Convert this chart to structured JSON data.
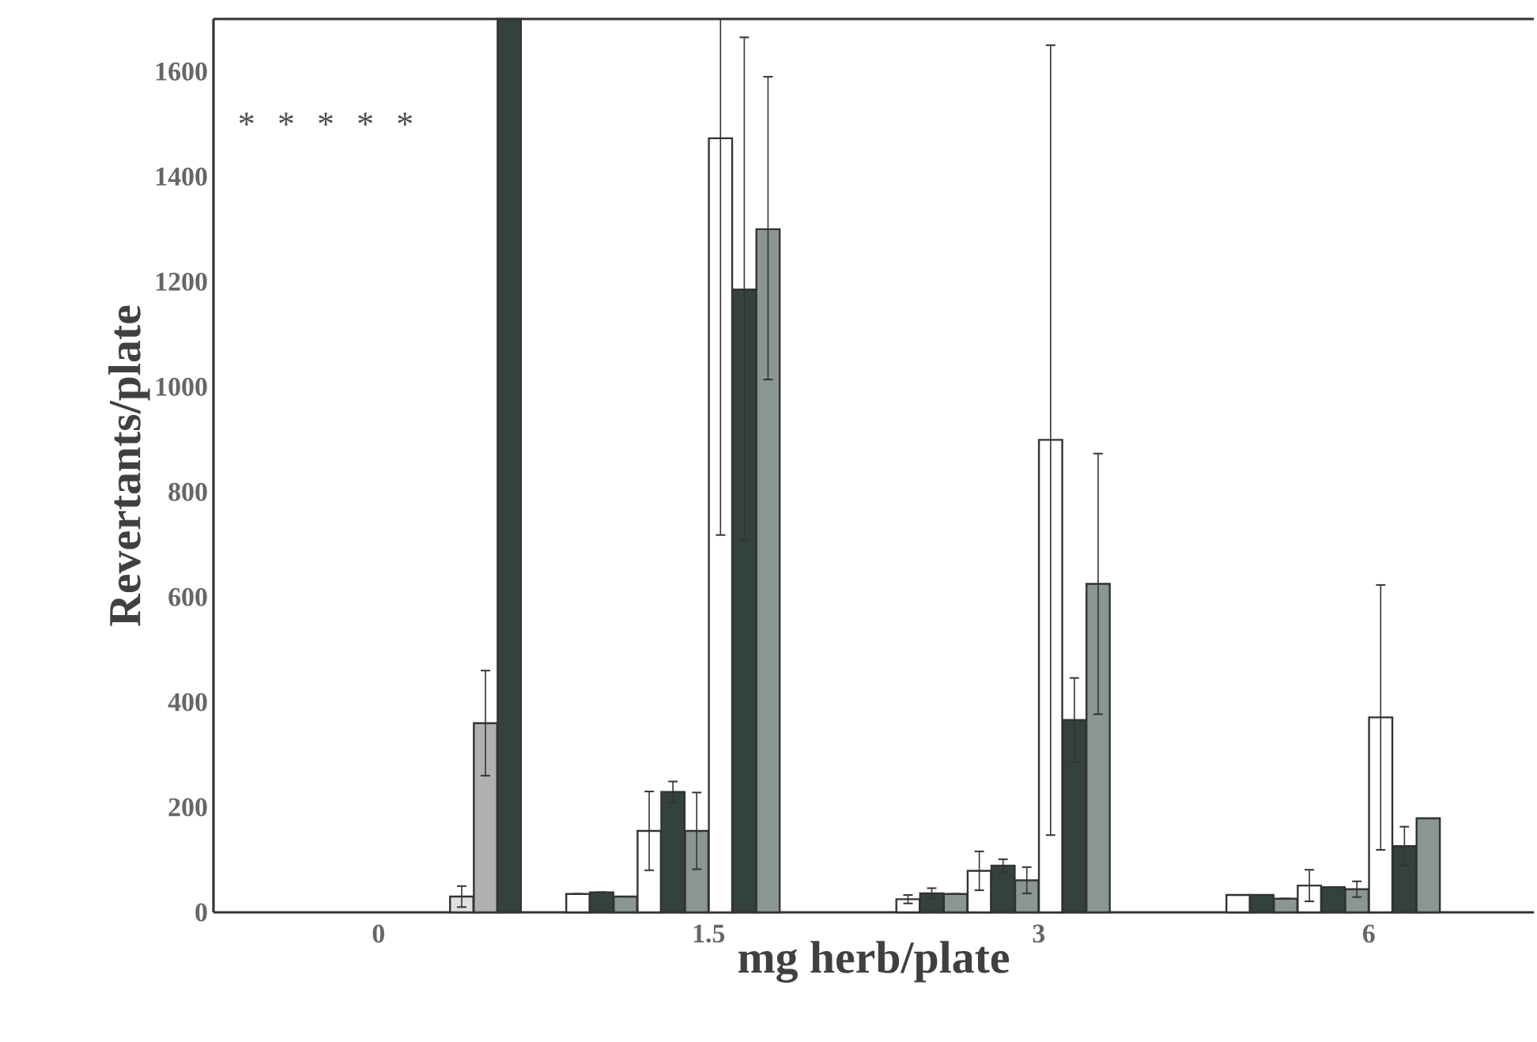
{
  "chart_data": {
    "type": "bar",
    "xlabel": "mg herb/plate",
    "ylabel": "Revertants/plate",
    "categories": [
      "0",
      "1.5",
      "3",
      "6"
    ],
    "ylim": [
      0,
      1700
    ],
    "yticks": [
      0,
      200,
      400,
      600,
      800,
      1000,
      1200,
      1400,
      1600
    ],
    "grid": false,
    "series": [
      {
        "color": "#ffffff",
        "values": [
          null,
          35,
          25,
          33
        ],
        "errors": [
          null,
          null,
          8,
          null
        ]
      },
      {
        "color": "#34423f",
        "values": [
          null,
          38,
          36,
          33
        ],
        "errors": [
          null,
          null,
          10,
          null
        ]
      },
      {
        "color": "#8a9694",
        "values": [
          null,
          30,
          35,
          26
        ],
        "errors": [
          null,
          null,
          null,
          null
        ]
      },
      {
        "color": "#ffffff",
        "values": [
          null,
          155,
          79,
          51
        ],
        "errors": [
          null,
          75,
          37,
          30
        ]
      },
      {
        "color": "#34423f",
        "values": [
          null,
          229,
          89,
          48
        ],
        "errors": [
          null,
          20,
          12,
          null
        ]
      },
      {
        "color": "#8a9694",
        "values": [
          null,
          155,
          61,
          44
        ],
        "errors": [
          null,
          73,
          25,
          15
        ]
      },
      {
        "color": "#ffffff",
        "values": [
          null,
          1473,
          899,
          371
        ],
        "errors": [
          null,
          [
            718,
            1700
          ],
          [
            147,
            1650
          ],
          252
        ]
      },
      {
        "color": "#34423f",
        "values": [
          null,
          1185,
          366,
          126
        ],
        "errors": [
          null,
          [
            708,
            1665
          ],
          80,
          37
        ]
      },
      {
        "color": "#8a9694",
        "values": [
          null,
          1300,
          625,
          179
        ],
        "errors": [
          null,
          [
            1014,
            1590
          ],
          248,
          null
        ]
      },
      {
        "color": "#e0e0e0",
        "values": [
          30,
          null,
          null,
          null
        ],
        "errors": [
          20,
          null,
          null,
          null
        ]
      },
      {
        "color": "#b0b0b0",
        "values": [
          360,
          null,
          null,
          null
        ],
        "errors": [
          100,
          null,
          null,
          null
        ]
      },
      {
        "color": "#34423f",
        "values": [
          1700,
          null,
          null,
          null
        ],
        "errors": [
          null,
          null,
          null,
          null
        ]
      }
    ],
    "annotations": [
      "*",
      "*",
      "*",
      "*",
      "*"
    ]
  }
}
